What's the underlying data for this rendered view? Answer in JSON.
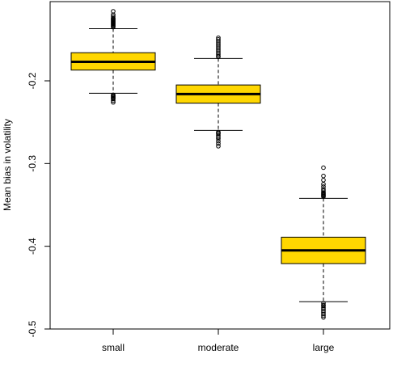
{
  "chart_data": {
    "type": "boxplot",
    "ylabel": "Mean bias in volatility",
    "xlabel": "",
    "title": "",
    "ylim": [
      -0.5,
      -0.12
    ],
    "yticks": [
      -0.2,
      -0.3,
      -0.4,
      -0.5
    ],
    "ytick_labels": [
      "-0.2",
      "-0.3",
      "-0.4",
      "-0.5"
    ],
    "box_color": "#FFD700",
    "categories": [
      "small",
      "moderate",
      "large"
    ],
    "boxes": [
      {
        "name": "small",
        "whisker_low": -0.215,
        "q1": -0.187,
        "median": -0.177,
        "q3": -0.166,
        "whisker_high": -0.137,
        "outliers_high": [
          -0.135,
          -0.134,
          -0.133,
          -0.132,
          -0.131,
          -0.13,
          -0.129,
          -0.128,
          -0.127,
          -0.126,
          -0.125,
          -0.124,
          -0.122,
          -0.12,
          -0.116
        ],
        "outliers_low": [
          -0.217,
          -0.218,
          -0.219,
          -0.22,
          -0.221,
          -0.222,
          -0.224,
          -0.226
        ]
      },
      {
        "name": "moderate",
        "whisker_low": -0.26,
        "q1": -0.227,
        "median": -0.216,
        "q3": -0.205,
        "whisker_high": -0.173,
        "outliers_high": [
          -0.171,
          -0.17,
          -0.168,
          -0.166,
          -0.164,
          -0.162,
          -0.16,
          -0.158,
          -0.156,
          -0.154,
          -0.152,
          -0.15,
          -0.148
        ],
        "outliers_low": [
          -0.262,
          -0.263,
          -0.264,
          -0.266,
          -0.268,
          -0.27,
          -0.273,
          -0.276,
          -0.279
        ]
      },
      {
        "name": "large",
        "whisker_low": -0.467,
        "q1": -0.421,
        "median": -0.405,
        "q3": -0.389,
        "whisker_high": -0.342,
        "outliers_high": [
          -0.34,
          -0.339,
          -0.338,
          -0.337,
          -0.336,
          -0.335,
          -0.333,
          -0.331,
          -0.328,
          -0.325,
          -0.32,
          -0.315,
          -0.305
        ],
        "outliers_low": [
          -0.469,
          -0.471,
          -0.472,
          -0.474,
          -0.476,
          -0.478,
          -0.48,
          -0.482,
          -0.484,
          -0.486
        ]
      }
    ]
  }
}
